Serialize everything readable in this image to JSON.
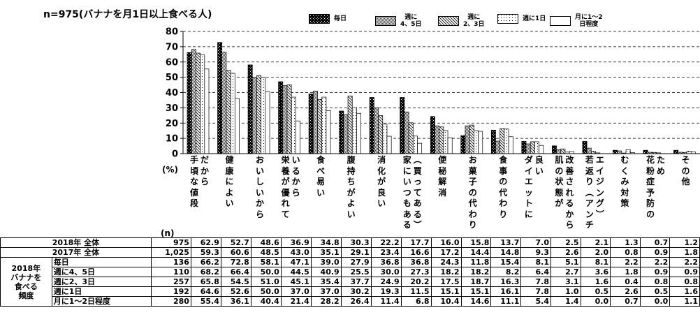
{
  "chart_data": {
    "type": "bar",
    "title": "n=975(バナナを月1日以上食べる人)",
    "ylabel": "(%)",
    "nlabel": "(n)",
    "ylim": [
      0,
      80
    ],
    "yticks": [
      0,
      10,
      20,
      30,
      40,
      50,
      60,
      70,
      80
    ],
    "categories": [
      "手頃な値段だから",
      "健康によい",
      "おいしいから",
      "栄養が優れているから",
      "食べ易い",
      "腹持ちがよい",
      "消化が良い",
      "家にいつもある（買ってある）",
      "便秘解消",
      "お菓子の代わり",
      "食事の代わり",
      "ダイエットに良い",
      "肌の状態が改善されるから",
      "若返り（アンチエイジング）",
      "むくみ対策",
      "花粉症予防のため",
      "その他"
    ],
    "category_columns": [
      [
        "手頃な値段",
        "だから"
      ],
      [
        "健康によい"
      ],
      [
        "おいしいから"
      ],
      [
        "栄養が優れて",
        "いるから"
      ],
      [
        "食べ易い"
      ],
      [
        "腹持ちがよい"
      ],
      [
        "消化が良い"
      ],
      [
        "家にいつもある",
        "︵買ってある︶"
      ],
      [
        "便秘解消"
      ],
      [
        "お菓子の代わり"
      ],
      [
        "食事の代わり"
      ],
      [
        "ダイエットに",
        "良い"
      ],
      [
        "肌の状態が",
        "改善されるから"
      ],
      [
        "若返り︵アンチ",
        "エイジング︶"
      ],
      [
        "むくみ対策"
      ],
      [
        "花粉症予防の",
        "ため"
      ],
      [
        "その他"
      ]
    ],
    "series": [
      {
        "name": "毎日",
        "n": "136",
        "values": [
          66.2,
          72.8,
          58.1,
          47.1,
          39.0,
          27.9,
          36.8,
          36.8,
          24.3,
          11.8,
          15.4,
          8.1,
          5.1,
          8.1,
          2.2,
          2.2,
          2.2
        ]
      },
      {
        "name": "週に4、5日",
        "n": "110",
        "values": [
          68.2,
          66.4,
          50.0,
          44.5,
          40.9,
          25.5,
          30.0,
          27.3,
          18.2,
          18.2,
          8.2,
          6.4,
          2.7,
          3.6,
          1.8,
          0.9,
          0.9
        ]
      },
      {
        "name": "週に2、3日",
        "n": "257",
        "values": [
          65.8,
          54.5,
          51.0,
          45.1,
          35.4,
          37.7,
          24.9,
          20.2,
          17.5,
          18.7,
          16.3,
          7.8,
          3.1,
          1.6,
          0.4,
          0.8,
          0.8
        ]
      },
      {
        "name": "週に1日",
        "n": "192",
        "values": [
          64.6,
          52.6,
          50.0,
          37.0,
          37.0,
          30.2,
          19.3,
          11.5,
          15.1,
          15.1,
          16.1,
          7.8,
          1.0,
          0.5,
          2.6,
          0.5,
          1.6
        ]
      },
      {
        "name": "月に1～2日程度",
        "n": "280",
        "values": [
          55.4,
          36.1,
          40.4,
          21.4,
          28.2,
          26.4,
          11.4,
          6.8,
          10.4,
          14.6,
          11.1,
          5.4,
          1.4,
          0.0,
          0.7,
          0.0,
          1.1
        ]
      }
    ],
    "totals": [
      {
        "name": "2018年 全体",
        "n": "975",
        "values": [
          62.9,
          52.7,
          48.6,
          36.9,
          34.8,
          30.3,
          22.2,
          17.7,
          16.0,
          15.8,
          13.7,
          7.0,
          2.5,
          2.1,
          1.3,
          0.7,
          1.2
        ]
      },
      {
        "name": "2017年 全体",
        "n": "1,025",
        "values": [
          59.3,
          60.6,
          48.5,
          43.0,
          35.1,
          29.1,
          23.4,
          16.6,
          17.2,
          14.4,
          14.8,
          9.3,
          2.6,
          2.0,
          0.8,
          0.9,
          1.8
        ]
      }
    ],
    "group_label": "2018年\nバナナを\n食べる\n頻度",
    "legend_labels": [
      "毎日",
      "週に\n4、5日",
      "週に\n2、3日",
      "週に1日",
      "月に1～2\n日程度"
    ],
    "grid": true
  }
}
